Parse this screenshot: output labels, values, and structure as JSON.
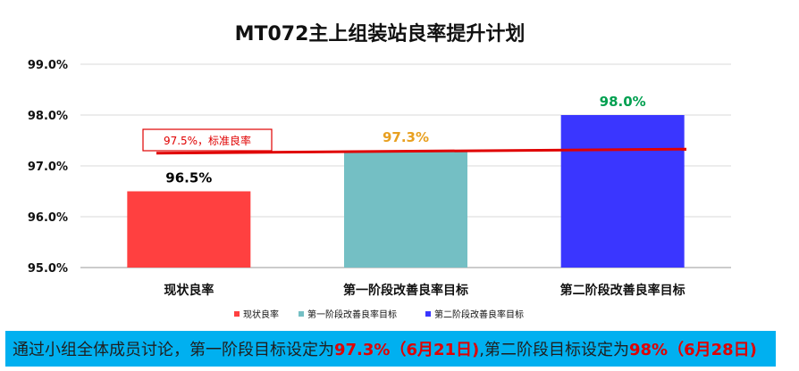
{
  "chart_data": {
    "type": "bar",
    "title": "MT072主上组装站良率提升计划",
    "categories": [
      "现状良率",
      "第一阶段改善良率目标",
      "第二阶段改善良率目标"
    ],
    "values": [
      96.5,
      97.3,
      98.0
    ],
    "value_labels": [
      "96.5%",
      "97.3%",
      "98.0%"
    ],
    "label_colors": [
      "#000000",
      "#e8a020",
      "#00a050"
    ],
    "bar_colors": [
      "#ff4040",
      "#74bfc4",
      "#3a36ff"
    ],
    "ylim": [
      95.0,
      99.0
    ],
    "yticks": [
      "95.0%",
      "96.0%",
      "97.0%",
      "98.0%",
      "99.0%"
    ],
    "grid": true,
    "legend": {
      "position": "bottom",
      "entries": [
        "现状良率",
        "第一阶段改善良率目标",
        "第二阶段改善良率目标"
      ]
    },
    "reference_line": {
      "label": "97.5%，标准良率",
      "y_start": 97.25,
      "y_end": 97.33,
      "color": "#e00000"
    }
  },
  "footer": {
    "part1": "通过小组全体成员讨论，第一阶段目标设定为",
    "part2": "97.3%（6月21日)",
    "part3": ",第二阶段目标设定为",
    "part4": "98%（6月28日)"
  }
}
